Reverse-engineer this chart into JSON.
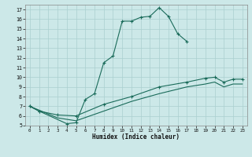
{
  "bg_color": "#cce8e8",
  "line_color": "#1a6b5a",
  "grid_color": "#aacfcf",
  "xlabel": "Humidex (Indice chaleur)",
  "xlim": [
    -0.5,
    23.5
  ],
  "ylim": [
    5,
    17.5
  ],
  "yticks": [
    5,
    6,
    7,
    8,
    9,
    10,
    11,
    12,
    13,
    14,
    15,
    16,
    17
  ],
  "xticks": [
    0,
    1,
    2,
    3,
    4,
    5,
    6,
    7,
    8,
    9,
    10,
    11,
    12,
    13,
    14,
    15,
    16,
    17,
    18,
    19,
    20,
    21,
    22,
    23
  ],
  "curve1_x": [
    0,
    1,
    4,
    5,
    6,
    7,
    8,
    9,
    10,
    11,
    12,
    13,
    14,
    15,
    16,
    17
  ],
  "curve1_y": [
    7.0,
    6.5,
    5.2,
    5.3,
    7.7,
    8.3,
    11.5,
    12.2,
    15.8,
    15.8,
    16.2,
    16.3,
    17.2,
    16.3,
    14.5,
    13.7
  ],
  "curve2_x": [
    0,
    1,
    3,
    5,
    8,
    11,
    14,
    17,
    19,
    20,
    21,
    22,
    23
  ],
  "curve2_y": [
    7.0,
    6.5,
    6.1,
    6.0,
    7.2,
    8.0,
    9.0,
    9.5,
    9.9,
    10.0,
    9.5,
    9.8,
    9.8
  ],
  "curve3_x": [
    0,
    3,
    5,
    8,
    11,
    14,
    17,
    19,
    20,
    21,
    22,
    23
  ],
  "curve3_y": [
    7.0,
    5.8,
    5.5,
    6.5,
    7.5,
    8.3,
    9.0,
    9.3,
    9.5,
    9.0,
    9.3,
    9.3
  ]
}
